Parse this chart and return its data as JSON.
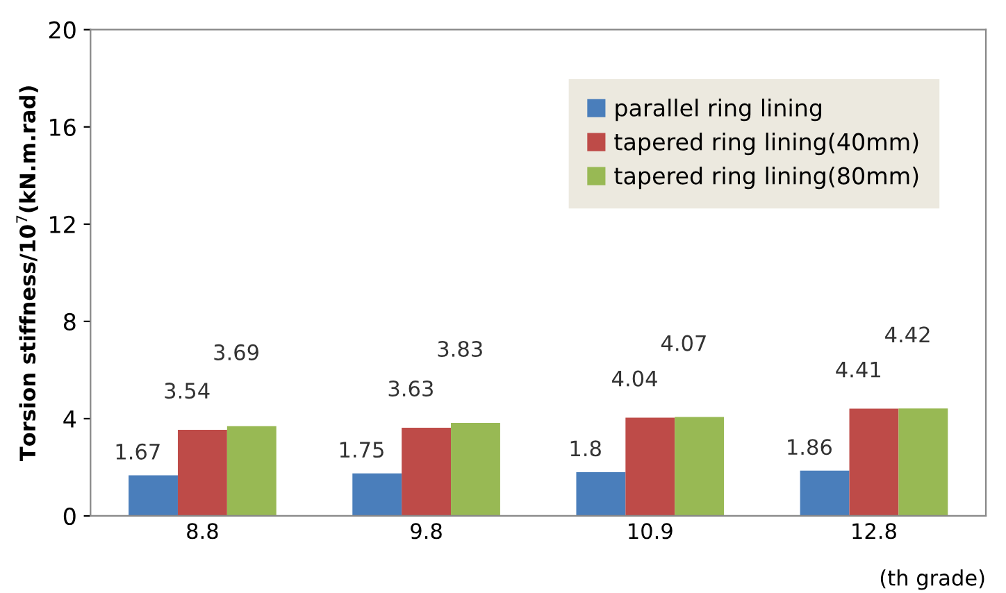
{
  "chart_data": {
    "type": "bar",
    "ylabel": "Torsion stiffness/10$^{7}$(kN.m.rad)",
    "xlabel": "(th grade)",
    "categories": [
      "8.8",
      "9.8",
      "10.9",
      "12.8"
    ],
    "series": [
      {
        "name": "parallel ring lining",
        "color": "#4a7ebb",
        "values": [
          1.67,
          1.75,
          1.8,
          1.86
        ]
      },
      {
        "name": "tapered ring lining(40mm)",
        "color": "#be4b48",
        "values": [
          3.54,
          3.63,
          4.04,
          4.41
        ]
      },
      {
        "name": "tapered ring lining(80mm)",
        "color": "#98b954",
        "values": [
          3.69,
          3.83,
          4.07,
          4.42
        ]
      }
    ],
    "ylim": [
      0,
      20
    ],
    "yticks": [
      0,
      4,
      8,
      12,
      16,
      20
    ],
    "data_labels": true,
    "legend": "top right",
    "grid": false
  }
}
